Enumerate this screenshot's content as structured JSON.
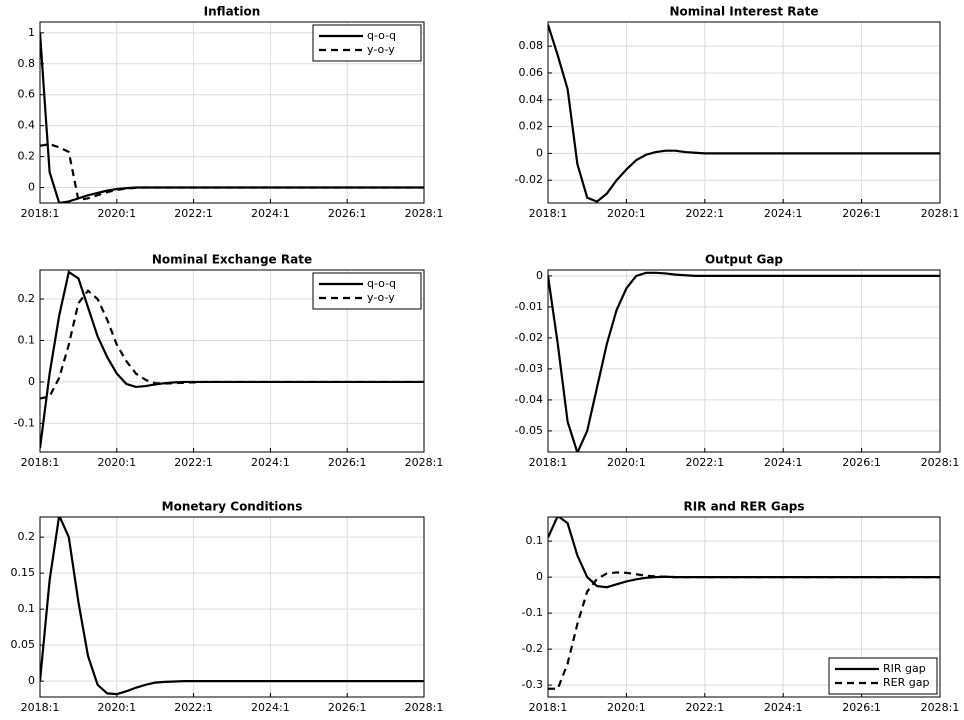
{
  "chart_data": [
    {
      "type": "line",
      "title": "Inflation",
      "categories": [
        "2018:1",
        null,
        null,
        null,
        null,
        null,
        null,
        null,
        "2020:1",
        null,
        null,
        null,
        null,
        null,
        null,
        null,
        "2022:1",
        null,
        null,
        null,
        null,
        null,
        null,
        null,
        "2024:1",
        null,
        null,
        null,
        null,
        null,
        null,
        null,
        "2026:1",
        null,
        null,
        null,
        null,
        null,
        null,
        null,
        "2028:1"
      ],
      "series": [
        {
          "name": "q-o-q",
          "color": "#000000",
          "style": "solid",
          "values": [
            1,
            0.1,
            -0.1,
            -0.09,
            -0.07,
            -0.05,
            -0.035,
            -0.02,
            -0.01,
            -0.004,
            0,
            0,
            0,
            0,
            0,
            0,
            0,
            0,
            0,
            0,
            0,
            0,
            0,
            0,
            0,
            0,
            0,
            0,
            0,
            0,
            0,
            0,
            0,
            0,
            0,
            0,
            0,
            0,
            0,
            0,
            0
          ]
        },
        {
          "name": "y-o-y",
          "color": "#000000",
          "style": "dashed",
          "values": [
            0.27,
            0.28,
            0.26,
            0.23,
            -0.08,
            -0.07,
            -0.05,
            -0.03,
            -0.015,
            -0.006,
            -0.002,
            0,
            0,
            0,
            0,
            0,
            0,
            0,
            0,
            0,
            0,
            0,
            0,
            0,
            0,
            0,
            0,
            0,
            0,
            0,
            0,
            0,
            0,
            0,
            0,
            0,
            0,
            0,
            0,
            0,
            0
          ]
        }
      ],
      "ylim": [
        -0.1,
        1.07
      ],
      "yticks": [
        0,
        0.2,
        0.4,
        0.6,
        0.8,
        1
      ],
      "grid": true,
      "legend": "top-right"
    },
    {
      "type": "line",
      "title": "Nominal Interest Rate",
      "categories": [
        "2018:1",
        null,
        null,
        null,
        null,
        null,
        null,
        null,
        "2020:1",
        null,
        null,
        null,
        null,
        null,
        null,
        null,
        "2022:1",
        null,
        null,
        null,
        null,
        null,
        null,
        null,
        "2024:1",
        null,
        null,
        null,
        null,
        null,
        null,
        null,
        "2026:1",
        null,
        null,
        null,
        null,
        null,
        null,
        null,
        "2028:1"
      ],
      "series": [
        {
          "color": "#000000",
          "style": "solid",
          "values": [
            0.096,
            0.073,
            0.048,
            -0.008,
            -0.033,
            -0.036,
            -0.03,
            -0.02,
            -0.012,
            -0.005,
            -0.001,
            0.001,
            0.002,
            0.002,
            0.001,
            0.0005,
            0,
            0,
            0,
            0,
            0,
            0,
            0,
            0,
            0,
            0,
            0,
            0,
            0,
            0,
            0,
            0,
            0,
            0,
            0,
            0,
            0,
            0,
            0,
            0,
            0
          ]
        }
      ],
      "ylim": [
        -0.037,
        0.098
      ],
      "yticks": [
        -0.02,
        0,
        0.02,
        0.04,
        0.06,
        0.08
      ],
      "grid": true
    },
    {
      "type": "line",
      "title": "Nominal Exchange Rate",
      "categories": [
        "2018:1",
        null,
        null,
        null,
        null,
        null,
        null,
        null,
        "2020:1",
        null,
        null,
        null,
        null,
        null,
        null,
        null,
        "2022:1",
        null,
        null,
        null,
        null,
        null,
        null,
        null,
        "2024:1",
        null,
        null,
        null,
        null,
        null,
        null,
        null,
        "2026:1",
        null,
        null,
        null,
        null,
        null,
        null,
        null,
        "2028:1"
      ],
      "series": [
        {
          "name": "q-o-q",
          "color": "#000000",
          "style": "solid",
          "values": [
            -0.16,
            0.02,
            0.16,
            0.265,
            0.25,
            0.18,
            0.11,
            0.06,
            0.02,
            -0.005,
            -0.012,
            -0.01,
            -0.006,
            -0.003,
            -0.001,
            0,
            0,
            0,
            0,
            0,
            0,
            0,
            0,
            0,
            0,
            0,
            0,
            0,
            0,
            0,
            0,
            0,
            0,
            0,
            0,
            0,
            0,
            0,
            0,
            0,
            0
          ]
        },
        {
          "name": "y-o-y",
          "color": "#000000",
          "style": "dashed",
          "values": [
            -0.04,
            -0.035,
            0.01,
            0.09,
            0.19,
            0.22,
            0.2,
            0.15,
            0.09,
            0.05,
            0.02,
            0.005,
            -0.003,
            -0.004,
            -0.003,
            -0.002,
            -0.001,
            0,
            0,
            0,
            0,
            0,
            0,
            0,
            0,
            0,
            0,
            0,
            0,
            0,
            0,
            0,
            0,
            0,
            0,
            0,
            0,
            0,
            0,
            0,
            0
          ]
        }
      ],
      "ylim": [
        -0.169,
        0.27
      ],
      "yticks": [
        -0.1,
        0,
        0.1,
        0.2
      ],
      "grid": true,
      "legend": "top-right"
    },
    {
      "type": "line",
      "title": "Output Gap",
      "categories": [
        "2018:1",
        null,
        null,
        null,
        null,
        null,
        null,
        null,
        "2020:1",
        null,
        null,
        null,
        null,
        null,
        null,
        null,
        "2022:1",
        null,
        null,
        null,
        null,
        null,
        null,
        null,
        "2024:1",
        null,
        null,
        null,
        null,
        null,
        null,
        null,
        "2026:1",
        null,
        null,
        null,
        null,
        null,
        null,
        null,
        "2028:1"
      ],
      "series": [
        {
          "color": "#000000",
          "style": "solid",
          "values": [
            0,
            -0.022,
            -0.047,
            -0.057,
            -0.05,
            -0.036,
            -0.022,
            -0.011,
            -0.004,
            0,
            0.001,
            0.001,
            0.0008,
            0.0004,
            0.0002,
            0,
            0,
            0,
            0,
            0,
            0,
            0,
            0,
            0,
            0,
            0,
            0,
            0,
            0,
            0,
            0,
            0,
            0,
            0,
            0,
            0,
            0,
            0,
            0,
            0,
            0
          ]
        }
      ],
      "ylim": [
        -0.0568,
        0.0019
      ],
      "yticks": [
        -0.05,
        -0.04,
        -0.03,
        -0.02,
        -0.01,
        0
      ],
      "grid": true
    },
    {
      "type": "line",
      "title": "Monetary Conditions",
      "categories": [
        "2018:1",
        null,
        null,
        null,
        null,
        null,
        null,
        null,
        "2020:1",
        null,
        null,
        null,
        null,
        null,
        null,
        null,
        "2022:1",
        null,
        null,
        null,
        null,
        null,
        null,
        null,
        "2024:1",
        null,
        null,
        null,
        null,
        null,
        null,
        null,
        "2026:1",
        null,
        null,
        null,
        null,
        null,
        null,
        null,
        "2028:1"
      ],
      "series": [
        {
          "color": "#000000",
          "style": "solid",
          "values": [
            0,
            0.14,
            0.23,
            0.2,
            0.11,
            0.035,
            -0.005,
            -0.017,
            -0.018,
            -0.014,
            -0.009,
            -0.005,
            -0.002,
            -0.001,
            -0.0005,
            0,
            0,
            0,
            0,
            0,
            0,
            0,
            0,
            0,
            0,
            0,
            0,
            0,
            0,
            0,
            0,
            0,
            0,
            0,
            0,
            0,
            0,
            0,
            0,
            0,
            0
          ]
        }
      ],
      "ylim": [
        -0.022,
        0.228
      ],
      "yticks": [
        0,
        0.05,
        0.1,
        0.15,
        0.2
      ],
      "grid": true
    },
    {
      "type": "line",
      "title": "RIR and RER Gaps",
      "categories": [
        "2018:1",
        null,
        null,
        null,
        null,
        null,
        null,
        null,
        "2020:1",
        null,
        null,
        null,
        null,
        null,
        null,
        null,
        "2022:1",
        null,
        null,
        null,
        null,
        null,
        null,
        null,
        "2024:1",
        null,
        null,
        null,
        null,
        null,
        null,
        null,
        "2026:1",
        null,
        null,
        null,
        null,
        null,
        null,
        null,
        "2028:1"
      ],
      "series": [
        {
          "name": "RIR gap",
          "color": "#000000",
          "style": "solid",
          "values": [
            0.11,
            0.17,
            0.15,
            0.06,
            0,
            -0.025,
            -0.028,
            -0.02,
            -0.012,
            -0.006,
            -0.002,
            0,
            0.001,
            0,
            0,
            0,
            0,
            0,
            0,
            0,
            0,
            0,
            0,
            0,
            0,
            0,
            0,
            0,
            0,
            0,
            0,
            0,
            0,
            0,
            0,
            0,
            0,
            0,
            0,
            0,
            0
          ]
        },
        {
          "name": "RER gap",
          "color": "#000000",
          "style": "dashed",
          "values": [
            -0.31,
            -0.31,
            -0.24,
            -0.13,
            -0.04,
            -0.005,
            0.01,
            0.013,
            0.012,
            0.008,
            0.004,
            0.002,
            0.001,
            0,
            0,
            0,
            0,
            0,
            0,
            0,
            0,
            0,
            0,
            0,
            0,
            0,
            0,
            0,
            0,
            0,
            0,
            0,
            0,
            0,
            0,
            0,
            0,
            0,
            0,
            0,
            0
          ]
        }
      ],
      "ylim": [
        -0.333,
        0.167
      ],
      "yticks": [
        -0.3,
        -0.2,
        -0.1,
        0,
        0.1
      ],
      "grid": true,
      "legend": "bottom-right"
    }
  ]
}
